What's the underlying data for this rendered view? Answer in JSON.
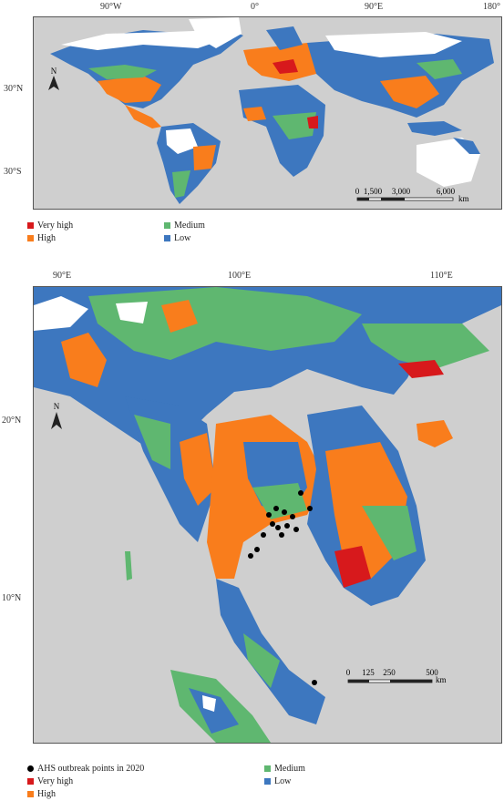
{
  "colors": {
    "very_high": "#d7191c",
    "high": "#f97d1c",
    "medium": "#5fb770",
    "low": "#3d77bf",
    "background": "#cfcfcf",
    "no_data": "#ffffff",
    "outbreak": "#000000"
  },
  "world_map": {
    "lon_ticks": [
      "90°W",
      "0°",
      "90°E",
      "180°"
    ],
    "lat_ticks": [
      "30°N",
      "30°S"
    ],
    "north_label": "N",
    "scale_values": [
      "0",
      "1,500",
      "3,000",
      "6,000"
    ],
    "scale_unit": "km",
    "legend": [
      {
        "label": "Very high",
        "class": "very_high"
      },
      {
        "label": "High",
        "class": "high"
      },
      {
        "label": "Medium",
        "class": "medium"
      },
      {
        "label": "Low",
        "class": "low"
      }
    ]
  },
  "region_map": {
    "lon_ticks": [
      "90°E",
      "100°E",
      "110°E"
    ],
    "lat_ticks": [
      "20°N",
      "10°N"
    ],
    "north_label": "N",
    "scale_values": [
      "0",
      "125",
      "250",
      "500"
    ],
    "scale_unit": "km",
    "legend": [
      {
        "label": "AHS outbreak points in 2020",
        "class": "outbreak"
      },
      {
        "label": "Very high",
        "class": "very_high"
      },
      {
        "label": "High",
        "class": "high"
      },
      {
        "label": "Medium",
        "class": "medium"
      },
      {
        "label": "Low",
        "class": "low"
      }
    ]
  }
}
